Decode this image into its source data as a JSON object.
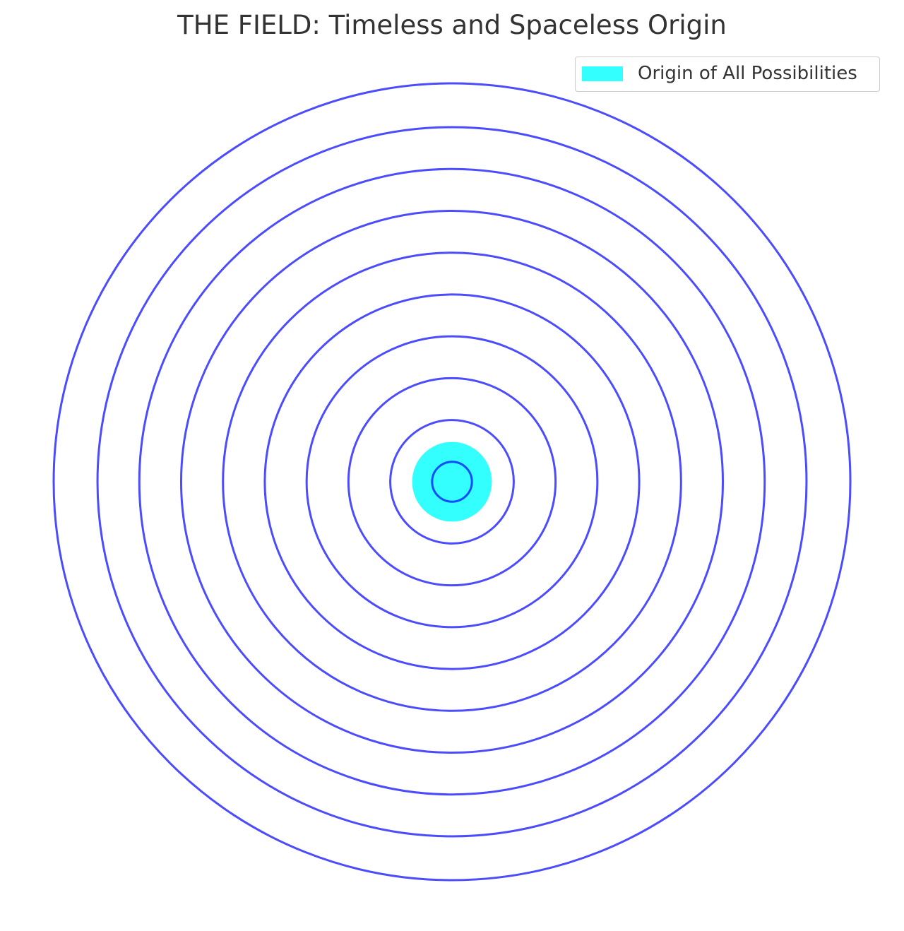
{
  "chart_data": {
    "type": "line",
    "title": "THE FIELD: Timeless and Spaceless Origin",
    "xlabel": "",
    "ylabel": "",
    "grid": false,
    "axes_visible": false,
    "xlim": [
      -1,
      1
    ],
    "ylim": [
      -1,
      1
    ],
    "legend_placement": "top-right",
    "origin": {
      "name": "Origin of All Possibilities",
      "x": 0,
      "y": 0,
      "radius": 0.1,
      "color": "#00FFFF",
      "alpha": 0.8
    },
    "series": [
      {
        "radius": 0.05
      },
      {
        "radius": 0.155
      },
      {
        "radius": 0.26
      },
      {
        "radius": 0.365
      },
      {
        "radius": 0.47
      },
      {
        "radius": 0.575
      },
      {
        "radius": 0.68
      },
      {
        "radius": 0.785
      },
      {
        "radius": 0.89
      },
      {
        "radius": 1.0
      }
    ],
    "ring_color": "#0000FF",
    "ring_alpha": 0.7
  }
}
